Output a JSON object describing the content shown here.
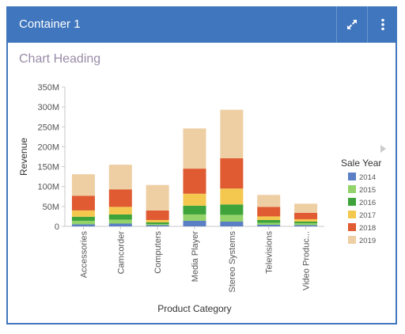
{
  "container": {
    "title": "Container 1"
  },
  "chart_heading": "Chart Heading",
  "colors": {
    "header_bg": "#3f76bd",
    "border": "#3f76bd",
    "heading_text": "#9a8ba8"
  },
  "icons": {
    "expand": "expand-icon",
    "menu": "vertical-ellipsis-icon",
    "legend_scroll": "triangle-right-icon"
  },
  "chart_data": {
    "type": "bar",
    "stacked": true,
    "title": "",
    "xlabel": "Product Category",
    "ylabel": "Revenue",
    "ylim": [
      0,
      350
    ],
    "y_ticks": [
      "0",
      "50M",
      "100M",
      "150M",
      "200M",
      "250M",
      "300M",
      "350M"
    ],
    "y_tick_values": [
      0,
      50,
      100,
      150,
      200,
      250,
      300,
      350
    ],
    "categories": [
      "Accessories",
      "Camcorder",
      "Computers",
      "Media Player",
      "Stereo Systems",
      "Televisions",
      "Video Produc..."
    ],
    "legend": {
      "title": "Sale Year",
      "placement": "right"
    },
    "series": [
      {
        "name": "2014",
        "color": "#5b7fc4",
        "values": [
          5,
          7,
          3,
          14,
          12,
          4,
          3
        ]
      },
      {
        "name": "2015",
        "color": "#93d36a",
        "values": [
          9,
          10,
          3,
          16,
          17,
          5,
          5
        ]
      },
      {
        "name": "2016",
        "color": "#3ea33a",
        "values": [
          10,
          13,
          4,
          22,
          26,
          7,
          4
        ]
      },
      {
        "name": "2017",
        "color": "#f4c84e",
        "values": [
          16,
          19,
          6,
          30,
          40,
          9,
          6
        ]
      },
      {
        "name": "2018",
        "color": "#e05a32",
        "values": [
          37,
          44,
          24,
          63,
          76,
          24,
          16
        ]
      },
      {
        "name": "2019",
        "color": "#eecfa4",
        "values": [
          54,
          62,
          64,
          101,
          122,
          30,
          23
        ]
      }
    ]
  }
}
